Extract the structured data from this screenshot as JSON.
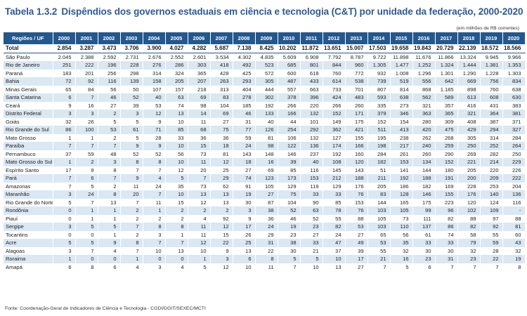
{
  "table_number": "Tabela 1.3.2",
  "title": "Dispêndios dos governos estaduais em ciência e tecnologia (C&T) por unidade da federação, 2000-2020",
  "unit_note": "(em milhões de R$ correntes)",
  "header": {
    "region_label": "Regiões / UF",
    "years": [
      "2000",
      "2001",
      "2002",
      "2003",
      "2004",
      "2005",
      "2006",
      "2007",
      "2008",
      "2009",
      "2010",
      "2011",
      "2012",
      "2013",
      "2014",
      "2015",
      "2016",
      "2017",
      "2018",
      "2019",
      "2020"
    ]
  },
  "rows": [
    {
      "name": "Total",
      "values": [
        "2.854",
        "3.287",
        "3.473",
        "3.706",
        "3.900",
        "4.027",
        "4.282",
        "5.687",
        "7.138",
        "8.425",
        "10.202",
        "11.872",
        "13.651",
        "15.007",
        "17.503",
        "19.658",
        "19.843",
        "20.729",
        "22.139",
        "18.572",
        "18.566"
      ]
    },
    {
      "name": "São Paulo",
      "values": [
        "2.045",
        "2.388",
        "2.592",
        "2.731",
        "2.676",
        "2.552",
        "2.601",
        "3.534",
        "4.302",
        "4.835",
        "5.609",
        "6.908",
        "7.792",
        "8.787",
        "9.722",
        "11.898",
        "11.676",
        "11.866",
        "13.324",
        "9.945",
        "9.966"
      ]
    },
    {
      "name": "Rio de Janeiro",
      "values": [
        "251",
        "222",
        "196",
        "228",
        "276",
        "286",
        "303",
        "418",
        "492",
        "523",
        "685",
        "801",
        "844",
        "960",
        "1.305",
        "1.477",
        "1.252",
        "1.324",
        "1.444",
        "1.381",
        "1.353"
      ]
    },
    {
      "name": "Paraná",
      "values": [
        "183",
        "201",
        "256",
        "298",
        "314",
        "324",
        "365",
        "428",
        "425",
        "572",
        "600",
        "618",
        "760",
        "772",
        "932",
        "1.008",
        "1.296",
        "1.301",
        "1.290",
        "1.228",
        "1.303"
      ]
    },
    {
      "name": "Bahia",
      "values": [
        "72",
        "92",
        "116",
        "139",
        "158",
        "205",
        "207",
        "263",
        "293",
        "305",
        "487",
        "433",
        "614",
        "538",
        "739",
        "519",
        "556",
        "642",
        "669",
        "756",
        "834"
      ]
    },
    {
      "name": "Minas Gerais",
      "values": [
        "65",
        "84",
        "56",
        "50",
        "107",
        "157",
        "218",
        "313",
        "404",
        "444",
        "557",
        "663",
        "733",
        "701",
        "807",
        "814",
        "868",
        "1.185",
        "898",
        "760",
        "638"
      ]
    },
    {
      "name": "Santa Catarina",
      "values": [
        "6",
        "7",
        "46",
        "52",
        "40",
        "63",
        "69",
        "83",
        "278",
        "302",
        "378",
        "396",
        "424",
        "483",
        "593",
        "638",
        "562",
        "589",
        "613",
        "608",
        "630"
      ]
    },
    {
      "name": "Ceará",
      "values": [
        "9",
        "16",
        "27",
        "39",
        "53",
        "74",
        "98",
        "104",
        "185",
        "192",
        "266",
        "220",
        "266",
        "260",
        "335",
        "273",
        "321",
        "357",
        "416",
        "431",
        "383"
      ]
    },
    {
      "name": "Distrito Federal",
      "values": [
        "3",
        "3",
        "2",
        "3",
        "12",
        "13",
        "14",
        "69",
        "46",
        "133",
        "166",
        "132",
        "152",
        "171",
        "379",
        "346",
        "363",
        "365",
        "321",
        "364",
        "381"
      ]
    },
    {
      "name": "Goiás",
      "values": [
        "32",
        "26",
        "5",
        "5",
        "9",
        "10",
        "11",
        "27",
        "31",
        "40",
        "44",
        "101",
        "149",
        "175",
        "152",
        "154",
        "280",
        "309",
        "408",
        "387",
        "371"
      ]
    },
    {
      "name": "Rio Grande do Sul",
      "values": [
        "86",
        "100",
        "53",
        "61",
        "71",
        "85",
        "68",
        "75",
        "77",
        "126",
        "254",
        "292",
        "362",
        "421",
        "511",
        "413",
        "420",
        "475",
        "429",
        "294",
        "327"
      ]
    },
    {
      "name": "Mato Grosso",
      "values": [
        "1",
        "1",
        "2",
        "5",
        "28",
        "33",
        "36",
        "36",
        "59",
        "81",
        "106",
        "132",
        "127",
        "155",
        "195",
        "238",
        "262",
        "268",
        "305",
        "314",
        "284"
      ]
    },
    {
      "name": "Paraíba",
      "values": [
        "7",
        "7",
        "7",
        "9",
        "9",
        "10",
        "15",
        "18",
        "24",
        "98",
        "122",
        "136",
        "174",
        "166",
        "198",
        "217",
        "240",
        "259",
        "250",
        "252",
        "264"
      ]
    },
    {
      "name": "Pernambuco",
      "values": [
        "37",
        "59",
        "48",
        "52",
        "52",
        "56",
        "73",
        "81",
        "143",
        "148",
        "146",
        "237",
        "192",
        "160",
        "284",
        "261",
        "260",
        "290",
        "269",
        "282",
        "250"
      ]
    },
    {
      "name": "Mato Grosso do Sul",
      "values": [
        "1",
        "2",
        "3",
        "8",
        "8",
        "10",
        "11",
        "12",
        "18",
        "16",
        "39",
        "40",
        "108",
        "120",
        "182",
        "153",
        "134",
        "152",
        "221",
        "214",
        "229"
      ]
    },
    {
      "name": "Espírito Santo",
      "values": [
        "17",
        "9",
        "8",
        "7",
        "7",
        "12",
        "20",
        "25",
        "27",
        "69",
        "85",
        "116",
        "145",
        "143",
        "51",
        "141",
        "144",
        "180",
        "205",
        "220",
        "226"
      ]
    },
    {
      "name": "Pará",
      "values": [
        "7",
        "6",
        "7",
        "9",
        "4",
        "5",
        "7",
        "29",
        "74",
        "123",
        "173",
        "153",
        "212",
        "188",
        "211",
        "192",
        "188",
        "191",
        "200",
        "209",
        "222"
      ]
    },
    {
      "name": "Amazonas",
      "values": [
        "7",
        "5",
        "2",
        "11",
        "24",
        "35",
        "73",
        "62",
        "91",
        "105",
        "129",
        "119",
        "129",
        "176",
        "205",
        "186",
        "182",
        "169",
        "228",
        "253",
        "204"
      ]
    },
    {
      "name": "Maranhão",
      "values": [
        "3",
        "24",
        "8",
        "20",
        "7",
        "10",
        "13",
        "13",
        "19",
        "27",
        "75",
        "33",
        "33",
        "76",
        "83",
        "128",
        "146",
        "155",
        "176",
        "140",
        "136"
      ]
    },
    {
      "name": "Rio Grande do Norte",
      "values": [
        "5",
        "7",
        "13",
        "7",
        "11",
        "15",
        "12",
        "13",
        "30",
        "87",
        "104",
        "90",
        "85",
        "153",
        "144",
        "165",
        "175",
        "223",
        "120",
        "124",
        "116"
      ]
    },
    {
      "name": "Rondônia",
      "values": [
        "0",
        "1",
        "1",
        "2",
        "1",
        "2",
        "2",
        "2",
        "3",
        "38",
        "52",
        "63",
        "78",
        "76",
        "103",
        "105",
        "99",
        "96",
        "102",
        "109",
        "-"
      ]
    },
    {
      "name": "Piauí",
      "values": [
        "0",
        "1",
        "1",
        "2",
        "2",
        "2",
        "4",
        "92",
        "9",
        "36",
        "46",
        "52",
        "55",
        "88",
        "105",
        "73",
        "111",
        "82",
        "88",
        "97",
        "88"
      ]
    },
    {
      "name": "Sergipe",
      "values": [
        "3",
        "5",
        "5",
        "7",
        "8",
        "8",
        "11",
        "12",
        "17",
        "24",
        "19",
        "23",
        "82",
        "53",
        "103",
        "110",
        "137",
        "86",
        "82",
        "92",
        "81"
      ]
    },
    {
      "name": "Tocantins",
      "values": [
        "0",
        "0",
        "1",
        "2",
        "3",
        "1",
        "11",
        "15",
        "26",
        "29",
        "23",
        "27",
        "24",
        "27",
        "65",
        "56",
        "61",
        "74",
        "58",
        "55",
        "60"
      ]
    },
    {
      "name": "Acre",
      "values": [
        "5",
        "5",
        "9",
        "8",
        "7",
        "7",
        "12",
        "22",
        "25",
        "31",
        "38",
        "33",
        "47",
        "49",
        "53",
        "35",
        "33",
        "33",
        "79",
        "59",
        "43"
      ]
    },
    {
      "name": "Alagoas",
      "values": [
        "3",
        "7",
        "4",
        "7",
        "10",
        "13",
        "10",
        "9",
        "13",
        "22",
        "30",
        "21",
        "37",
        "39",
        "55",
        "32",
        "30",
        "30",
        "32",
        "28",
        "32"
      ]
    },
    {
      "name": "Roraima",
      "values": [
        "1",
        "0",
        "0",
        "1",
        "0",
        "0",
        "1",
        "3",
        "6",
        "8",
        "5",
        "5",
        "10",
        "17",
        "21",
        "16",
        "23",
        "31",
        "23",
        "22",
        "19"
      ]
    },
    {
      "name": "Amapá",
      "values": [
        "6",
        "8",
        "6",
        "4",
        "3",
        "4",
        "5",
        "12",
        "10",
        "11",
        "7",
        "10",
        "13",
        "27",
        "7",
        "5",
        "6",
        "7",
        "7",
        "7",
        "8"
      ]
    }
  ],
  "source": "Fonte: Coordenação-Geral de Indicadores de Ciência e Tecnologia - CGDI/DGIT/SEXEC/MCTI",
  "colors": {
    "title": "#2c5a94",
    "header_background": "#23588f",
    "stripe": "#dbe7f3"
  }
}
